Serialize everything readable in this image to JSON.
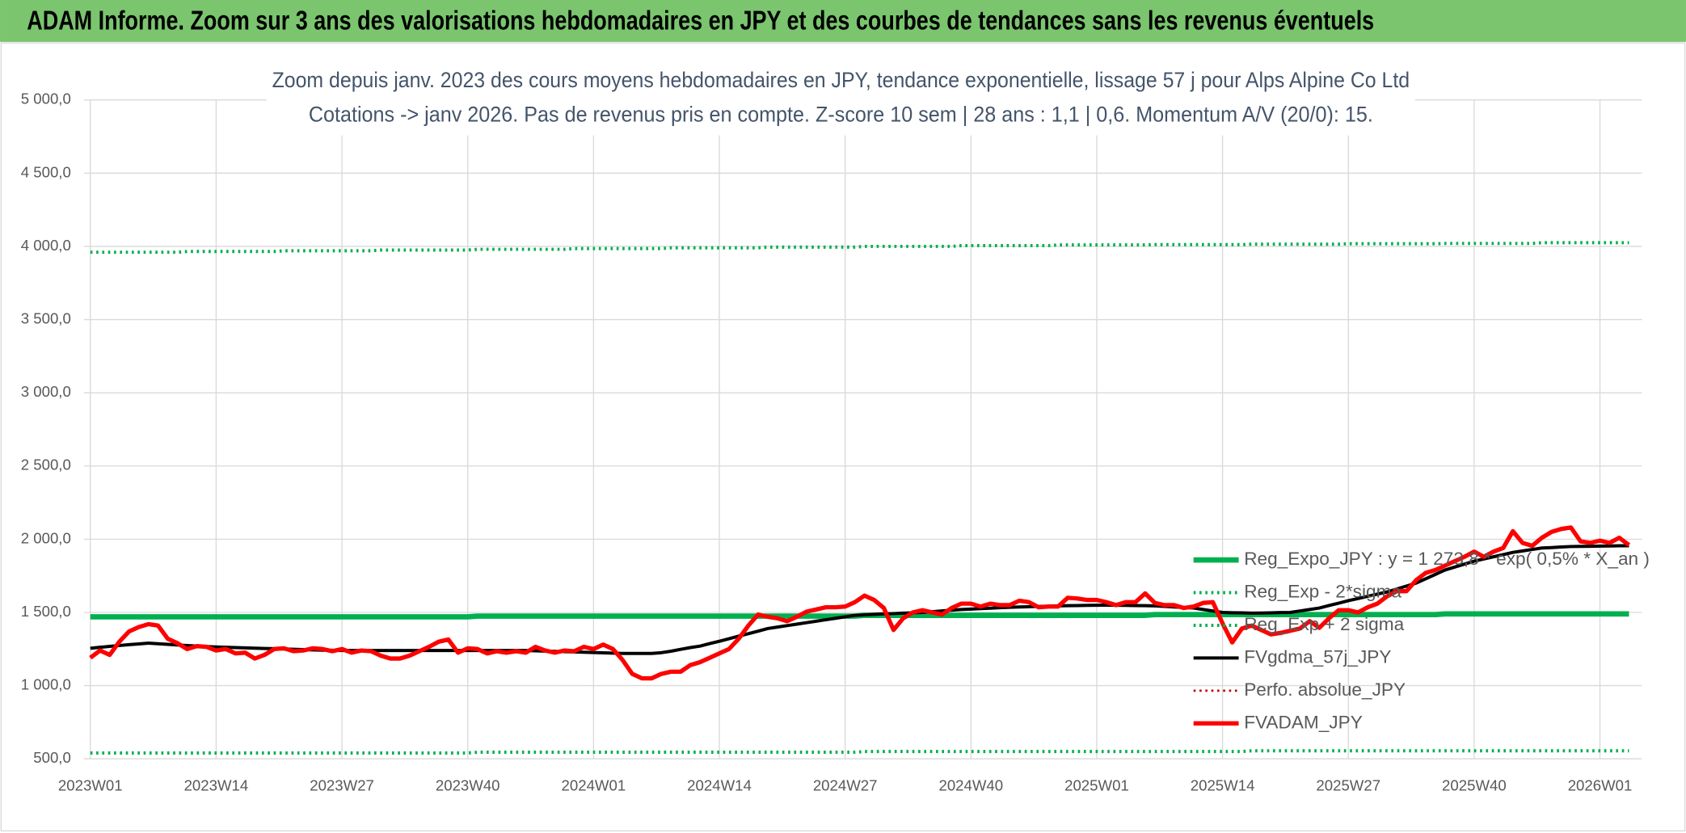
{
  "header": {
    "title": "ADAM Informe. Zoom sur 3 ans des valorisations hebdomadaires en JPY et des courbes de tendances sans les revenus éventuels"
  },
  "chart_data": {
    "type": "line",
    "title": "Zoom depuis janv. 2023 des cours moyens hebdomadaires en JPY, tendance exponentielle, lissage 57 j pour Alps Alpine Co Ltd",
    "subtitle": "Cotations -> janv 2026. Pas de revenus pris en compte. Z-score 10 sem | 28 ans : 1,1 | 0,6. Momentum A/V (20/0): 15.",
    "grid": true,
    "legend": "lower right",
    "ylim": [
      500,
      5000
    ],
    "yticks": [
      {
        "value": 500,
        "label": "500,0"
      },
      {
        "value": 1000,
        "label": "1 000,0"
      },
      {
        "value": 1500,
        "label": "1 500,0"
      },
      {
        "value": 2000,
        "label": "2 000,0"
      },
      {
        "value": 2500,
        "label": "2 500,0"
      },
      {
        "value": 3000,
        "label": "3 000,0"
      },
      {
        "value": 3500,
        "label": "3 500,0"
      },
      {
        "value": 4000,
        "label": "4 000,0"
      },
      {
        "value": 4500,
        "label": "4 500,0"
      },
      {
        "value": 5000,
        "label": "5 000,0"
      }
    ],
    "categories": [
      "2023W01",
      null,
      null,
      null,
      null,
      null,
      null,
      null,
      null,
      null,
      null,
      null,
      null,
      "2023W14",
      null,
      null,
      null,
      null,
      null,
      null,
      null,
      null,
      null,
      null,
      null,
      null,
      "2023W27",
      null,
      null,
      null,
      null,
      null,
      null,
      null,
      null,
      null,
      null,
      null,
      null,
      "2023W40",
      null,
      null,
      null,
      null,
      null,
      null,
      null,
      null,
      null,
      null,
      null,
      null,
      "2024W01",
      null,
      null,
      null,
      null,
      null,
      null,
      null,
      null,
      null,
      null,
      null,
      null,
      "2024W14",
      null,
      null,
      null,
      null,
      null,
      null,
      null,
      null,
      null,
      null,
      null,
      null,
      "2024W27",
      null,
      null,
      null,
      null,
      null,
      null,
      null,
      null,
      null,
      null,
      null,
      null,
      "2024W40",
      null,
      null,
      null,
      null,
      null,
      null,
      null,
      null,
      null,
      null,
      null,
      null,
      "2025W01",
      null,
      null,
      null,
      null,
      null,
      null,
      null,
      null,
      null,
      null,
      null,
      null,
      "2025W14",
      null,
      null,
      null,
      null,
      null,
      null,
      null,
      null,
      null,
      null,
      null,
      null,
      "2025W27",
      null,
      null,
      null,
      null,
      null,
      null,
      null,
      null,
      null,
      null,
      null,
      null,
      "2025W40",
      null,
      null,
      null,
      null,
      null,
      null,
      null,
      null,
      null,
      null,
      null,
      null,
      "2026W01",
      null,
      null,
      null
    ],
    "series": [
      {
        "name": "Reg_Expo_JPY : y = 1 273,8 * exp( 0,5% *  X_an )",
        "color": "#00b050",
        "style": "solid",
        "width": 5,
        "values": [
          1470,
          1470,
          1470,
          1470,
          1470,
          1470,
          1470,
          1470,
          1470,
          1470,
          1470,
          1470,
          1470,
          1470,
          1470,
          1470,
          1470,
          1470,
          1470,
          1470,
          1470,
          1470,
          1470,
          1470,
          1470,
          1470,
          1470,
          1470,
          1470,
          1470,
          1470,
          1470,
          1470,
          1470,
          1470,
          1470,
          1470,
          1470,
          1470,
          1470,
          1475,
          1475,
          1475,
          1475,
          1475,
          1475,
          1475,
          1475,
          1475,
          1475,
          1475,
          1475,
          1475,
          1475,
          1475,
          1475,
          1475,
          1475,
          1475,
          1475,
          1475,
          1475,
          1475,
          1475,
          1475,
          1475,
          1475,
          1475,
          1475,
          1475,
          1475,
          1475,
          1475,
          1475,
          1475,
          1475,
          1475,
          1475,
          1475,
          1475,
          1480,
          1480,
          1480,
          1480,
          1480,
          1480,
          1480,
          1480,
          1480,
          1480,
          1480,
          1480,
          1480,
          1480,
          1480,
          1480,
          1480,
          1480,
          1480,
          1480,
          1480,
          1480,
          1480,
          1480,
          1480,
          1480,
          1480,
          1480,
          1480,
          1480,
          1485,
          1485,
          1485,
          1485,
          1485,
          1485,
          1485,
          1485,
          1485,
          1485,
          1485,
          1485,
          1485,
          1485,
          1485,
          1485,
          1485,
          1485,
          1485,
          1485,
          1485,
          1485,
          1485,
          1485,
          1485,
          1485,
          1485,
          1485,
          1485,
          1485,
          1490,
          1490,
          1490,
          1490,
          1490,
          1490,
          1490,
          1490,
          1490,
          1490,
          1490,
          1490,
          1490,
          1490,
          1490,
          1490,
          1490,
          1490,
          1490,
          1490
        ]
      },
      {
        "name": "Reg_Exp - 2*sigma",
        "color": "#00b050",
        "style": "dotted",
        "width": 3,
        "values": [
          540,
          540,
          540,
          540,
          540,
          540,
          540,
          540,
          540,
          540,
          540,
          540,
          540,
          540,
          540,
          540,
          540,
          540,
          540,
          540,
          540,
          540,
          540,
          540,
          540,
          540,
          540,
          540,
          540,
          540,
          540,
          540,
          540,
          540,
          540,
          540,
          540,
          540,
          540,
          540,
          545,
          545,
          545,
          545,
          545,
          545,
          545,
          545,
          545,
          545,
          545,
          545,
          545,
          545,
          545,
          545,
          545,
          545,
          545,
          545,
          545,
          545,
          545,
          545,
          545,
          545,
          545,
          545,
          545,
          545,
          545,
          545,
          545,
          545,
          545,
          545,
          545,
          545,
          545,
          545,
          550,
          550,
          550,
          550,
          550,
          550,
          550,
          550,
          550,
          550,
          550,
          550,
          550,
          550,
          550,
          550,
          550,
          550,
          550,
          550,
          550,
          550,
          550,
          550,
          550,
          550,
          550,
          550,
          550,
          550,
          550,
          550,
          550,
          550,
          550,
          550,
          550,
          550,
          550,
          550,
          555,
          555,
          555,
          555,
          555,
          555,
          555,
          555,
          555,
          555,
          555,
          555,
          555,
          555,
          555,
          555,
          555,
          555,
          555,
          555,
          555,
          555,
          555,
          555,
          555,
          555,
          555,
          555,
          555,
          555,
          555,
          555,
          555,
          555,
          555,
          555,
          555,
          555,
          555,
          555
        ]
      },
      {
        "name": "Reg_Exp + 2 sigma",
        "color": "#00b050",
        "style": "dotted",
        "width": 3,
        "values": [
          3960,
          3960,
          3960,
          3960,
          3960,
          3960,
          3960,
          3960,
          3960,
          3960,
          3965,
          3965,
          3965,
          3965,
          3965,
          3965,
          3965,
          3965,
          3965,
          3965,
          3970,
          3970,
          3970,
          3970,
          3970,
          3970,
          3970,
          3970,
          3970,
          3970,
          3975,
          3975,
          3975,
          3975,
          3975,
          3975,
          3975,
          3975,
          3975,
          3975,
          3980,
          3980,
          3980,
          3980,
          3980,
          3980,
          3980,
          3980,
          3980,
          3980,
          3985,
          3985,
          3985,
          3985,
          3985,
          3985,
          3985,
          3985,
          3985,
          3985,
          3990,
          3990,
          3990,
          3990,
          3990,
          3990,
          3990,
          3990,
          3990,
          3990,
          3995,
          3995,
          3995,
          3995,
          3995,
          3995,
          3995,
          3995,
          3995,
          3995,
          4000,
          4000,
          4000,
          4000,
          4000,
          4000,
          4000,
          4000,
          4000,
          4000,
          4005,
          4005,
          4005,
          4005,
          4005,
          4005,
          4005,
          4005,
          4005,
          4005,
          4010,
          4010,
          4010,
          4010,
          4010,
          4010,
          4010,
          4010,
          4010,
          4010,
          4012,
          4012,
          4012,
          4012,
          4012,
          4012,
          4012,
          4012,
          4012,
          4012,
          4015,
          4015,
          4015,
          4015,
          4015,
          4015,
          4015,
          4015,
          4015,
          4015,
          4018,
          4018,
          4018,
          4018,
          4018,
          4018,
          4018,
          4018,
          4018,
          4018,
          4020,
          4020,
          4020,
          4020,
          4020,
          4020,
          4020,
          4020,
          4020,
          4020,
          4025,
          4025,
          4025,
          4025,
          4025,
          4025,
          4025,
          4025,
          4025,
          4025
        ]
      },
      {
        "name": "FVgdma_57j_JPY",
        "color": "#000000",
        "style": "solid",
        "width": 3,
        "values": [
          1255,
          1262,
          1268,
          1274,
          1280,
          1285,
          1290,
          1286,
          1282,
          1278,
          1274,
          1270,
          1267,
          1264,
          1262,
          1260,
          1258,
          1256,
          1254,
          1252,
          1250,
          1248,
          1246,
          1244,
          1242,
          1241,
          1240,
          1240,
          1240,
          1240,
          1240,
          1240,
          1240,
          1240,
          1240,
          1240,
          1240,
          1240,
          1240,
          1240,
          1240,
          1240,
          1240,
          1240,
          1240,
          1240,
          1238,
          1236,
          1234,
          1232,
          1230,
          1228,
          1226,
          1224,
          1222,
          1220,
          1220,
          1220,
          1220,
          1225,
          1235,
          1248,
          1260,
          1270,
          1287,
          1303,
          1320,
          1338,
          1355,
          1372,
          1390,
          1400,
          1410,
          1420,
          1430,
          1440,
          1450,
          1460,
          1470,
          1480,
          1483,
          1487,
          1490,
          1492,
          1495,
          1497,
          1500,
          1505,
          1510,
          1515,
          1520,
          1523,
          1526,
          1529,
          1532,
          1535,
          1537,
          1539,
          1541,
          1543,
          1545,
          1546,
          1547,
          1548,
          1549,
          1550,
          1549,
          1548,
          1547,
          1546,
          1545,
          1541,
          1537,
          1534,
          1530,
          1520,
          1510,
          1500,
          1498,
          1497,
          1495,
          1496,
          1497,
          1499,
          1500,
          1510,
          1520,
          1530,
          1547,
          1563,
          1580,
          1595,
          1610,
          1625,
          1640,
          1660,
          1680,
          1700,
          1730,
          1760,
          1790,
          1810,
          1830,
          1850,
          1865,
          1880,
          1895,
          1910,
          1920,
          1930,
          1940,
          1943,
          1947,
          1950,
          1951,
          1952,
          1953,
          1954,
          1955,
          1955
        ]
      },
      {
        "name": "Perfo. absolue_JPY",
        "color": "#c00000",
        "style": "dotted",
        "width": 2,
        "values": [
          null,
          null,
          null,
          null,
          null,
          null,
          null,
          null,
          null,
          null,
          null,
          null,
          null,
          null,
          null,
          null,
          null,
          null,
          null,
          null,
          null,
          null,
          null,
          null,
          null,
          null,
          null,
          null,
          null,
          null,
          null,
          null,
          null,
          null,
          null,
          null,
          null,
          null,
          null,
          null,
          null,
          null,
          null,
          null,
          null,
          null,
          null,
          null,
          null,
          null,
          null,
          null,
          null,
          null,
          null,
          null,
          null,
          null,
          null,
          null,
          null,
          null,
          null,
          null,
          null,
          null,
          null,
          null,
          null,
          null,
          null,
          null,
          null,
          null,
          null,
          null,
          null,
          null,
          null,
          null,
          null,
          null,
          null,
          null,
          null,
          null,
          null,
          null,
          null,
          null,
          null,
          null,
          null,
          null,
          null,
          null,
          null,
          null,
          null,
          null,
          null,
          null,
          null,
          null,
          null,
          null,
          null,
          null,
          null,
          null,
          null,
          null,
          null,
          null,
          null,
          null,
          null,
          null,
          null,
          null,
          null,
          null,
          null,
          null,
          null,
          null,
          null,
          null,
          null,
          null,
          null,
          null,
          null,
          null,
          null,
          null,
          null,
          null,
          null,
          null,
          null,
          null,
          null,
          null,
          null,
          null,
          null,
          null,
          null,
          null,
          null,
          null,
          null,
          null,
          null,
          null,
          null,
          null,
          null,
          null
        ]
      },
      {
        "name": "FVADAM_JPY",
        "color": "#ff0000",
        "style": "solid",
        "width": 4,
        "values": [
          1190,
          1240,
          1210,
          1300,
          1370,
          1400,
          1420,
          1410,
          1320,
          1290,
          1250,
          1270,
          1265,
          1240,
          1250,
          1220,
          1225,
          1185,
          1210,
          1250,
          1255,
          1235,
          1240,
          1255,
          1250,
          1235,
          1250,
          1225,
          1240,
          1235,
          1205,
          1185,
          1185,
          1205,
          1235,
          1265,
          1300,
          1315,
          1225,
          1255,
          1250,
          1220,
          1235,
          1225,
          1235,
          1225,
          1265,
          1240,
          1225,
          1240,
          1235,
          1265,
          1250,
          1280,
          1250,
          1175,
          1080,
          1050,
          1050,
          1080,
          1095,
          1095,
          1140,
          1160,
          1190,
          1220,
          1250,
          1320,
          1410,
          1485,
          1470,
          1460,
          1440,
          1470,
          1505,
          1520,
          1535,
          1535,
          1540,
          1570,
          1615,
          1585,
          1530,
          1380,
          1460,
          1500,
          1515,
          1500,
          1485,
          1530,
          1560,
          1560,
          1540,
          1560,
          1550,
          1550,
          1580,
          1570,
          1535,
          1540,
          1540,
          1600,
          1595,
          1585,
          1585,
          1570,
          1550,
          1570,
          1570,
          1630,
          1565,
          1550,
          1550,
          1530,
          1540,
          1565,
          1570,
          1425,
          1295,
          1390,
          1410,
          1380,
          1350,
          1360,
          1375,
          1390,
          1440,
          1395,
          1460,
          1515,
          1515,
          1500,
          1535,
          1560,
          1610,
          1645,
          1645,
          1720,
          1770,
          1790,
          1820,
          1850,
          1880,
          1915,
          1880,
          1915,
          1940,
          2055,
          1975,
          1955,
          2010,
          2050,
          2070,
          2080,
          1985,
          1975,
          1990,
          1975,
          2010,
          1960
        ]
      }
    ]
  }
}
